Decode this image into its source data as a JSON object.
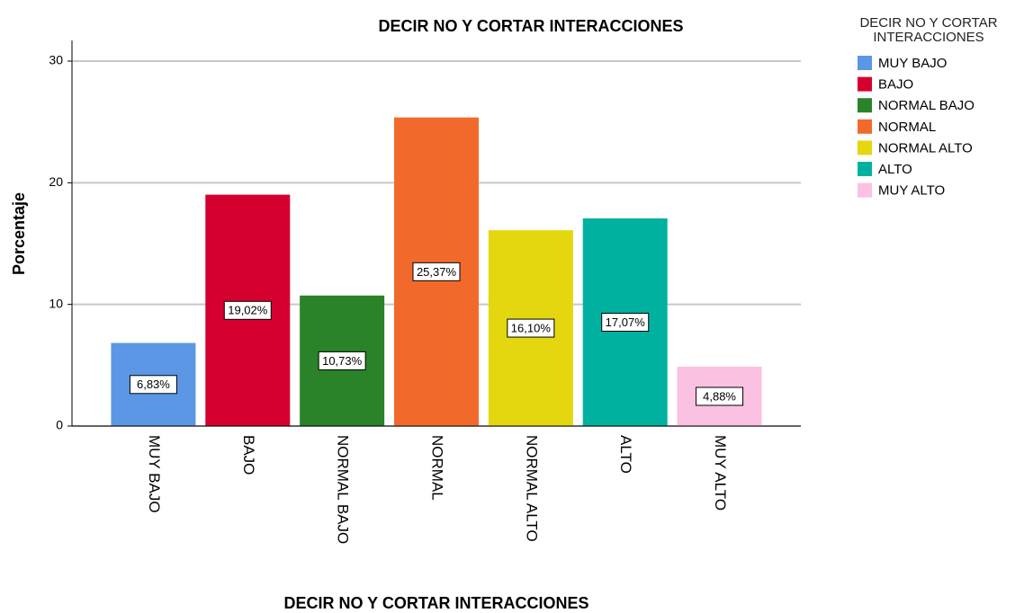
{
  "chart_data": {
    "type": "bar",
    "title": "DECIR NO Y CORTAR INTERACCIONES",
    "x_label": "DECIR NO Y CORTAR INTERACCIONES",
    "y_label": "Porcentaje",
    "legend_title": "DECIR NO Y CORTAR INTERACCIONES",
    "categories": [
      "MUY BAJO",
      "BAJO",
      "NORMAL BAJO",
      "NORMAL",
      "NORMAL ALTO",
      "ALTO",
      "MUY ALTO"
    ],
    "values": [
      6.83,
      19.02,
      10.73,
      25.37,
      16.1,
      17.07,
      4.88
    ],
    "value_labels": [
      "6,83%",
      "19,02%",
      "10,73%",
      "25,37%",
      "16,10%",
      "17,07%",
      "4,88%"
    ],
    "colors": [
      "#5b97e5",
      "#d6002f",
      "#2a8229",
      "#f26a2b",
      "#e4d70f",
      "#00b1a0",
      "#fbc1e1"
    ],
    "ylim": [
      0,
      31.7
    ],
    "yticks": [
      0,
      10,
      20,
      30
    ],
    "grid": true,
    "legend": "right"
  }
}
